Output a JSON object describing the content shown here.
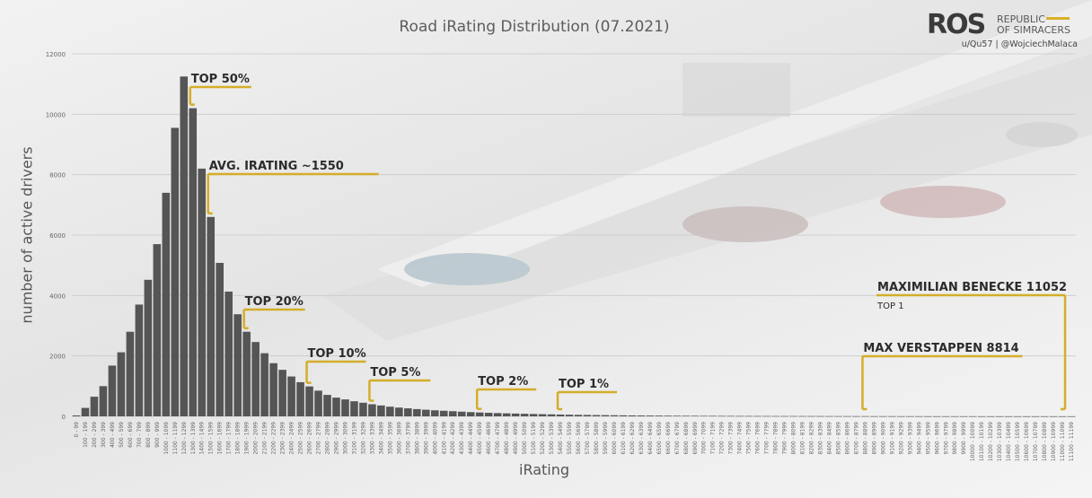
{
  "chart_data": {
    "type": "bar",
    "title": "Road iRating Distribution (07.2021)",
    "xlabel": "iRating",
    "ylabel": "number of active drivers",
    "ylim": [
      0,
      12000
    ],
    "yticks": [
      0,
      2000,
      4000,
      6000,
      8000,
      10000,
      12000
    ],
    "grid": true,
    "categories": [
      "0 - 99",
      "100 - 199",
      "200 - 299",
      "300 - 399",
      "400 - 499",
      "500 - 599",
      "600 - 699",
      "700 - 799",
      "800 - 899",
      "900 - 999",
      "1000 - 1099",
      "1100 - 1199",
      "1200 - 1299",
      "1300 - 1399",
      "1400 - 1499",
      "1500 - 1599",
      "1600 - 1699",
      "1700 - 1799",
      "1800 - 1899",
      "1900 - 1999",
      "2000 - 2099",
      "2100 - 2199",
      "2200 - 2299",
      "2300 - 2399",
      "2400 - 2499",
      "2500 - 2599",
      "2600 - 2699",
      "2700 - 2799",
      "2800 - 2899",
      "2900 - 2999",
      "3000 - 3099",
      "3100 - 3199",
      "3200 - 3299",
      "3300 - 3399",
      "3400 - 3499",
      "3500 - 3599",
      "3600 - 3699",
      "3700 - 3799",
      "3800 - 3899",
      "3900 - 3999",
      "4000 - 4099",
      "4100 - 4199",
      "4200 - 4299",
      "4300 - 4399",
      "4400 - 4499",
      "4500 - 4599",
      "4600 - 4699",
      "4700 - 4799",
      "4800 - 4899",
      "4900 - 4999",
      "5000 - 5099",
      "5100 - 5199",
      "5200 - 5299",
      "5300 - 5399",
      "5400 - 5499",
      "5500 - 5599",
      "5600 - 5699",
      "5700 - 5799",
      "5800 - 5899",
      "5900 - 5999",
      "6000 - 6099",
      "6100 - 6199",
      "6200 - 6299",
      "6300 - 6399",
      "6400 - 6499",
      "6500 - 6599",
      "6600 - 6699",
      "6700 - 6799",
      "6800 - 6899",
      "6900 - 6999",
      "7000 - 7099",
      "7100 - 7199",
      "7200 - 7299",
      "7300 - 7399",
      "7400 - 7499",
      "7500 - 7599",
      "7600 - 7699",
      "7700 - 7799",
      "7800 - 7899",
      "7900 - 7999",
      "8000 - 8099",
      "8100 - 8199",
      "8200 - 8299",
      "8300 - 8399",
      "8400 - 8499",
      "8500 - 8599",
      "8600 - 8699",
      "8700 - 8799",
      "8800 - 8899",
      "8900 - 8999",
      "9000 - 9099",
      "9100 - 9199",
      "9200 - 9299",
      "9300 - 9399",
      "9400 - 9499",
      "9500 - 9599",
      "9600 - 9699",
      "9700 - 9799",
      "9800 - 9899",
      "9900 - 9999",
      "10000 - 10099",
      "10100 - 10199",
      "10200 - 10299",
      "10300 - 10399",
      "10400 - 10499",
      "10500 - 10599",
      "10600 - 10699",
      "10700 - 10799",
      "10800 - 10899",
      "10900 - 10999",
      "11000 - 11099",
      "11100 - 11199"
    ],
    "values": [
      30,
      280,
      650,
      1000,
      1680,
      2120,
      2800,
      3700,
      4520,
      5700,
      7400,
      9550,
      11250,
      10200,
      8200,
      6600,
      5080,
      4130,
      3380,
      2800,
      2460,
      2090,
      1760,
      1540,
      1320,
      1130,
      990,
      850,
      710,
      620,
      560,
      500,
      450,
      400,
      360,
      320,
      290,
      265,
      240,
      220,
      200,
      185,
      170,
      155,
      140,
      128,
      118,
      108,
      100,
      92,
      85,
      78,
      72,
      66,
      60,
      55,
      50,
      46,
      42,
      39,
      36,
      33,
      30,
      28,
      26,
      24,
      22,
      20,
      19,
      18,
      17,
      16,
      15,
      14,
      13,
      12,
      11,
      10,
      10,
      9,
      9,
      8,
      8,
      7,
      7,
      6,
      6,
      5,
      5,
      4,
      4,
      4,
      3,
      3,
      3,
      2,
      2,
      2,
      2,
      2,
      2,
      1,
      1,
      1,
      1,
      1,
      1,
      1,
      1,
      1,
      1,
      1
    ],
    "bar_color": "#555555",
    "annotation_color": "#d4ad2a",
    "annotations": [
      {
        "id": "top50",
        "label": "TOP 50%",
        "at_category": "1300 - 1399"
      },
      {
        "id": "avg",
        "label": "AVG. IRATING ~1550",
        "at_category": "1500 - 1599"
      },
      {
        "id": "top20",
        "label": "TOP 20%",
        "at_category": "1900 - 1999"
      },
      {
        "id": "top10",
        "label": "TOP 10%",
        "at_category": "2600 - 2699"
      },
      {
        "id": "top5",
        "label": "TOP 5%",
        "at_category": "3300 - 3399"
      },
      {
        "id": "top2",
        "label": "TOP 2%",
        "at_category": "4500 - 4599"
      },
      {
        "id": "top1",
        "label": "TOP 1%",
        "at_category": "5400 - 5499"
      },
      {
        "id": "verstappen",
        "label": "MAX VERSTAPPEN  8814",
        "at_category": "8800 - 8899"
      },
      {
        "id": "benecke",
        "label": "MAXIMILIAN BENECKE  11052",
        "sublabel": "TOP 1",
        "at_category": "11000 - 11099"
      }
    ]
  },
  "brand": {
    "logo": "ROS",
    "name_line1": "REPUBLIC",
    "name_line2": "OF SIMRACERS",
    "credit": "u/Qu57  |  @WojciechMalaca"
  }
}
